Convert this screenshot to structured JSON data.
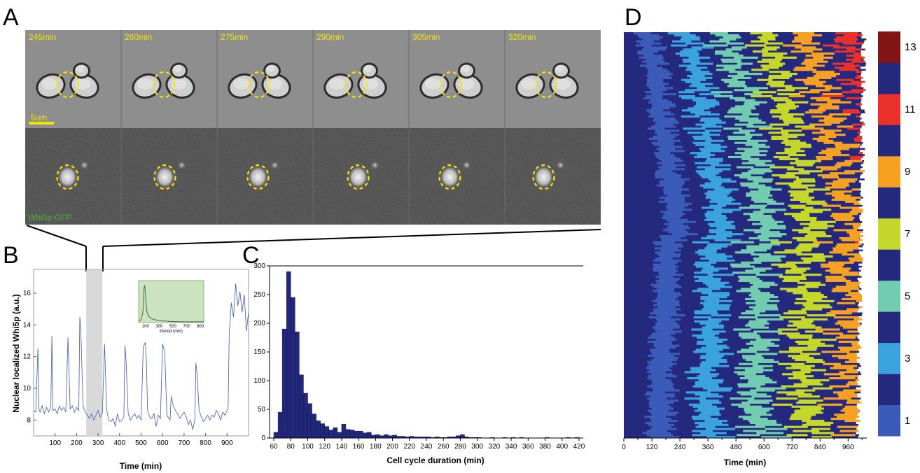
{
  "panels": {
    "a": "A",
    "b": "B",
    "c": "C",
    "d": "D"
  },
  "panel_a": {
    "time_labels": [
      "245min",
      "260min",
      "275min",
      "290min",
      "305min",
      "320min"
    ],
    "scale_bar_label": "5um",
    "channel_label": "Whi5p-GFP"
  },
  "chart_data": [
    {
      "type": "line",
      "panel": "B",
      "xlabel": "Time (min)",
      "ylabel": "Nuclear localized Whi5p (a.u.)",
      "xlim": [
        0,
        1000
      ],
      "ylim": [
        7,
        17.5
      ],
      "xticks": [
        "100",
        "200",
        "300",
        "400",
        "500",
        "600",
        "700",
        "800",
        "900"
      ],
      "yticks": [
        "8",
        "10",
        "12",
        "14",
        "16"
      ],
      "highlight_range": [
        245,
        320
      ],
      "series": [
        {
          "x": [
            0,
            10,
            20,
            25,
            30,
            40,
            50,
            60,
            70,
            80,
            85,
            90,
            100,
            110,
            120,
            130,
            140,
            150,
            160,
            170,
            180,
            190,
            200,
            210,
            215,
            220,
            230,
            240,
            250,
            260,
            270,
            280,
            290,
            300,
            310,
            320,
            330,
            340,
            350,
            360,
            370,
            380,
            390,
            400,
            410,
            420,
            425,
            430,
            440,
            450,
            460,
            470,
            480,
            490,
            500,
            510,
            520,
            525,
            530,
            540,
            550,
            560,
            570,
            580,
            590,
            600,
            610,
            620,
            630,
            635,
            640,
            650,
            660,
            670,
            680,
            690,
            700,
            710,
            720,
            730,
            740,
            750,
            755,
            760,
            770,
            780,
            790,
            800,
            810,
            820,
            830,
            840,
            850,
            860,
            870,
            880,
            890,
            900,
            905,
            910,
            920,
            930,
            940,
            950,
            960,
            970,
            980,
            990,
            1000
          ],
          "y": [
            8.6,
            8.5,
            12.5,
            8.7,
            8.5,
            8.9,
            8.4,
            8.8,
            8.5,
            8.9,
            13.3,
            8.6,
            8.7,
            8.4,
            8.9,
            8.6,
            8.8,
            8.5,
            13.2,
            8.7,
            8.9,
            8.5,
            8.8,
            8.6,
            14.5,
            13.6,
            8.9,
            8.5,
            8.3,
            8.1,
            8.4,
            8.0,
            8.3,
            8.6,
            8.2,
            8.4,
            12.8,
            8.6,
            8.0,
            7.9,
            8.1,
            7.6,
            8.4,
            7.9,
            8.0,
            8.2,
            12.7,
            11.8,
            8.4,
            8.0,
            8.2,
            8.4,
            8.1,
            8.3,
            8.0,
            12.6,
            12.9,
            11.7,
            8.6,
            8.2,
            8.1,
            8.4,
            7.6,
            8.3,
            8.1,
            12.8,
            12.3,
            8.3,
            8.1,
            8.0,
            9.5,
            8.9,
            8.6,
            8.4,
            8.1,
            8.3,
            8.5,
            8.2,
            7.7,
            8.0,
            7.4,
            8.0,
            11.6,
            11.0,
            8.6,
            8.2,
            7.9,
            8.1,
            8.3,
            8.0,
            8.3,
            8.2,
            8.6,
            8.4,
            8.0,
            8.5,
            8.3,
            8.6,
            8.8,
            13.5,
            15.4,
            14.5,
            16.6,
            15.2,
            16.1,
            14.8,
            15.9,
            13.6,
            14.8
          ]
        }
      ]
    },
    {
      "type": "line",
      "panel": "B-inset",
      "xlabel": "Period (min)",
      "xticks": [
        "100",
        "300",
        "500",
        "700",
        "900"
      ],
      "series": [
        {
          "x": [
            0,
            20,
            40,
            60,
            70,
            80,
            90,
            100,
            110,
            120,
            140,
            170,
            220,
            300,
            450,
            650,
            950
          ],
          "y": [
            0.04,
            0.05,
            0.1,
            0.25,
            0.5,
            0.9,
            0.95,
            0.7,
            0.45,
            0.3,
            0.18,
            0.12,
            0.08,
            0.05,
            0.03,
            0.02,
            0.02
          ]
        }
      ]
    },
    {
      "type": "bar",
      "panel": "C",
      "xlabel": "Cell cycle duration (min)",
      "ylim": [
        0,
        300
      ],
      "xlim": [
        55,
        425
      ],
      "yticks": [
        "0",
        "50",
        "100",
        "150",
        "200",
        "250",
        "300"
      ],
      "xticks": [
        "60",
        "80",
        "100",
        "120",
        "140",
        "160",
        "180",
        "200",
        "220",
        "240",
        "260",
        "280",
        "300",
        "320",
        "340",
        "360",
        "380",
        "400",
        "420"
      ],
      "bin_starts": [
        60,
        65,
        70,
        75,
        80,
        85,
        90,
        95,
        100,
        105,
        110,
        115,
        120,
        125,
        130,
        135,
        140,
        145,
        150,
        155,
        160,
        165,
        170,
        175,
        180,
        185,
        190,
        195,
        200,
        205,
        210,
        215,
        220,
        225,
        230,
        235,
        240,
        245,
        250,
        255,
        260,
        265,
        270,
        275,
        280,
        285,
        290,
        295,
        300,
        305,
        310,
        315,
        320,
        325,
        330,
        335,
        340,
        345,
        350,
        355,
        360,
        365,
        370,
        375,
        380,
        385,
        390,
        395,
        400,
        405,
        410,
        415
      ],
      "values": [
        10,
        45,
        190,
        290,
        245,
        185,
        110,
        78,
        60,
        42,
        30,
        25,
        20,
        14,
        18,
        10,
        24,
        15,
        14,
        12,
        12,
        9,
        10,
        5,
        6,
        4,
        6,
        4,
        5,
        3,
        3,
        2,
        3,
        2,
        2,
        2,
        2,
        1,
        2,
        1,
        1,
        2,
        2,
        4,
        6,
        2,
        1,
        1,
        1,
        0,
        0,
        1,
        0,
        0,
        1,
        0,
        1,
        0,
        1,
        0,
        0,
        0,
        0,
        0,
        1,
        0,
        0,
        0,
        0,
        1,
        0,
        1
      ]
    },
    {
      "type": "heatmap",
      "panel": "D",
      "xlabel": "Time (min)",
      "xlim": [
        0,
        1040
      ],
      "xticks": [
        "0",
        "120",
        "240",
        "360",
        "480",
        "600",
        "720",
        "840",
        "960"
      ],
      "colorbar_ticks": [
        "1",
        "3",
        "5",
        "7",
        "9",
        "11",
        "13"
      ],
      "colorbar_levels": [
        "#3a5bb8",
        "#25297e",
        "#3aa3dd",
        "#25297e",
        "#72ccb0",
        "#25297e",
        "#c5d72b",
        "#25297e",
        "#f7a122",
        "#25297e",
        "#e8312a",
        "#25297e",
        "#821416"
      ],
      "odd_cycle_colors": [
        "#3a5bb8",
        "#3aa3dd",
        "#72ccb0",
        "#c5d72b",
        "#f7a122",
        "#e8312a",
        "#821416"
      ],
      "even_cycle_color": "#25297e",
      "rows": 200,
      "first_division_time_range": [
        40,
        200
      ],
      "mean_cycle_duration": 92
    }
  ]
}
